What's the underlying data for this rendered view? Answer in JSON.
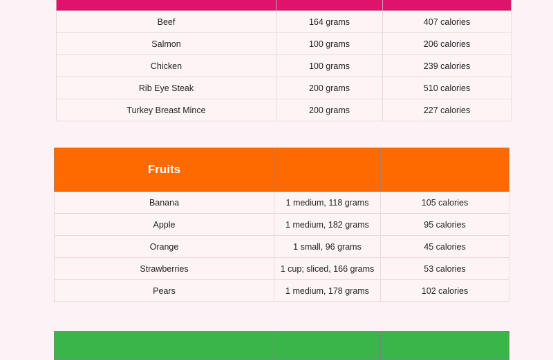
{
  "meat_table": {
    "rows": [
      {
        "food": "Beef",
        "serving": "164 grams",
        "calories": "407 calories"
      },
      {
        "food": "Salmon",
        "serving": "100 grams",
        "calories": "206 calories"
      },
      {
        "food": "Chicken",
        "serving": "100 grams",
        "calories": "239 calories"
      },
      {
        "food": "Rib Eye Steak",
        "serving": "200 grams",
        "calories": "510 calories"
      },
      {
        "food": "Turkey Breast Mince",
        "serving": "200 grams",
        "calories": "227 calories"
      }
    ]
  },
  "fruits_table": {
    "title": "Fruits",
    "rows": [
      {
        "food": "Banana",
        "serving": "1 medium, 118 grams",
        "calories": "105 calories"
      },
      {
        "food": "Apple",
        "serving": "1 medium, 182 grams",
        "calories": "95 calories"
      },
      {
        "food": "Orange",
        "serving": "1 small, 96 grams",
        "calories": "45 calories"
      },
      {
        "food": "Strawberries",
        "serving": "1 cup; sliced, 166 grams",
        "calories": "53 calories"
      },
      {
        "food": "Pears",
        "serving": "1 medium, 178 grams",
        "calories": "102 calories"
      }
    ]
  },
  "colors": {
    "meat_header": "#e0136c",
    "fruits_header": "#ff6a00",
    "next_header": "#3ab54a",
    "page_background": "#fdf2f5"
  }
}
